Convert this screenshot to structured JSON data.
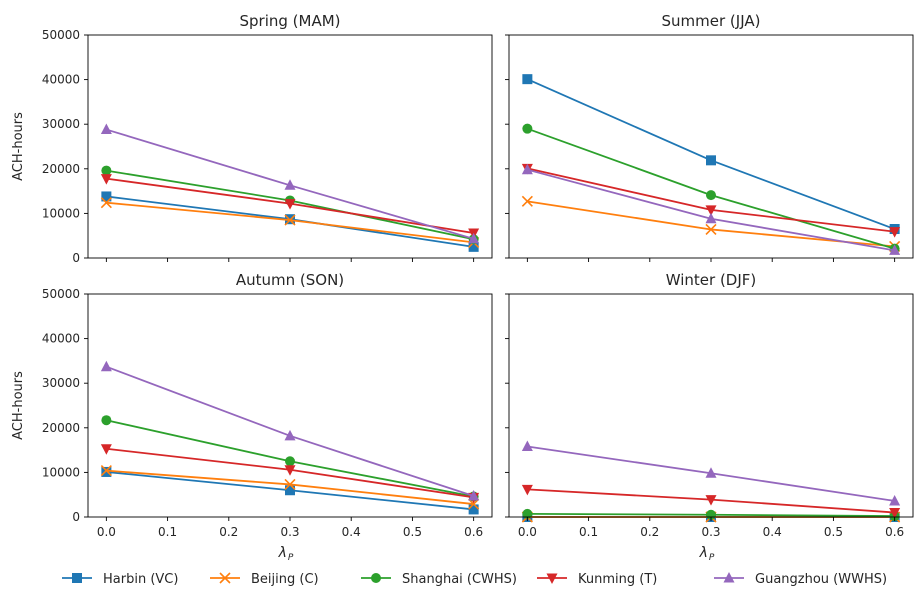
{
  "figure": {
    "ylabel": "ACH-hours",
    "xlabel_main": "λ",
    "xlabel_sub": "P",
    "legend_position": "bottom-center"
  },
  "chart_data": [
    {
      "type": "line",
      "title": "Spring (MAM)",
      "x": [
        0.0,
        0.3,
        0.6
      ],
      "xlim": [
        -0.03,
        0.63
      ],
      "ylim": [
        0,
        50000
      ],
      "xticks": [
        "0.0",
        "0.1",
        "0.2",
        "0.3",
        "0.4",
        "0.5",
        "0.6"
      ],
      "yticks": [
        "0",
        "10000",
        "20000",
        "30000",
        "40000",
        "50000"
      ],
      "grid": false,
      "series": [
        {
          "name": "Harbin (VC)",
          "values": [
            13800,
            8700,
            2500
          ]
        },
        {
          "name": "Beijing (C)",
          "values": [
            12400,
            8500,
            3500
          ]
        },
        {
          "name": "Shanghai (CWHS)",
          "values": [
            19600,
            12900,
            4200
          ]
        },
        {
          "name": "Kunming (T)",
          "values": [
            17800,
            12200,
            5600
          ]
        },
        {
          "name": "Guangzhou (WWHS)",
          "values": [
            28800,
            16300,
            4300
          ]
        }
      ]
    },
    {
      "type": "line",
      "title": "Summer (JJA)",
      "x": [
        0.0,
        0.3,
        0.6
      ],
      "xlim": [
        -0.03,
        0.63
      ],
      "ylim": [
        0,
        50000
      ],
      "xticks": [
        "0.0",
        "0.1",
        "0.2",
        "0.3",
        "0.4",
        "0.5",
        "0.6"
      ],
      "yticks": [
        "0",
        "10000",
        "20000",
        "30000",
        "40000",
        "50000"
      ],
      "grid": false,
      "series": [
        {
          "name": "Harbin (VC)",
          "values": [
            40100,
            21900,
            6500
          ]
        },
        {
          "name": "Beijing (C)",
          "values": [
            12700,
            6400,
            2600
          ]
        },
        {
          "name": "Shanghai (CWHS)",
          "values": [
            29000,
            14100,
            2100
          ]
        },
        {
          "name": "Kunming (T)",
          "values": [
            20100,
            10800,
            5900
          ]
        },
        {
          "name": "Guangzhou (WWHS)",
          "values": [
            19800,
            8800,
            1700
          ]
        }
      ]
    },
    {
      "type": "line",
      "title": "Autumn (SON)",
      "x": [
        0.0,
        0.3,
        0.6
      ],
      "xlim": [
        -0.03,
        0.63
      ],
      "ylim": [
        0,
        50000
      ],
      "xticks": [
        "0.0",
        "0.1",
        "0.2",
        "0.3",
        "0.4",
        "0.5",
        "0.6"
      ],
      "yticks": [
        "0",
        "10000",
        "20000",
        "30000",
        "40000",
        "50000"
      ],
      "grid": false,
      "series": [
        {
          "name": "Harbin (VC)",
          "values": [
            10100,
            6000,
            1700
          ]
        },
        {
          "name": "Beijing (C)",
          "values": [
            10400,
            7300,
            2900
          ]
        },
        {
          "name": "Shanghai (CWHS)",
          "values": [
            21700,
            12500,
            4600
          ]
        },
        {
          "name": "Kunming (T)",
          "values": [
            15300,
            10600,
            4400
          ]
        },
        {
          "name": "Guangzhou (WWHS)",
          "values": [
            33700,
            18200,
            4700
          ]
        }
      ]
    },
    {
      "type": "line",
      "title": "Winter (DJF)",
      "x": [
        0.0,
        0.3,
        0.6
      ],
      "xlim": [
        -0.03,
        0.63
      ],
      "ylim": [
        0,
        50000
      ],
      "xticks": [
        "0.0",
        "0.1",
        "0.2",
        "0.3",
        "0.4",
        "0.5",
        "0.6"
      ],
      "yticks": [
        "0",
        "10000",
        "20000",
        "30000",
        "40000",
        "50000"
      ],
      "grid": false,
      "series": [
        {
          "name": "Harbin (VC)",
          "values": [
            0,
            0,
            0
          ]
        },
        {
          "name": "Beijing (C)",
          "values": [
            0,
            0,
            0
          ]
        },
        {
          "name": "Shanghai (CWHS)",
          "values": [
            700,
            500,
            200
          ]
        },
        {
          "name": "Kunming (T)",
          "values": [
            6200,
            3900,
            1000
          ]
        },
        {
          "name": "Guangzhou (WWHS)",
          "values": [
            15800,
            9800,
            3600
          ]
        }
      ]
    }
  ],
  "legend": [
    {
      "label": "Harbin (VC)",
      "color": "#1f77b4",
      "marker": "square"
    },
    {
      "label": "Beijing (C)",
      "color": "#ff7f0e",
      "marker": "x"
    },
    {
      "label": "Shanghai (CWHS)",
      "color": "#2ca02c",
      "marker": "circle"
    },
    {
      "label": "Kunming (T)",
      "color": "#d62728",
      "marker": "triangle-down"
    },
    {
      "label": "Guangzhou (WWHS)",
      "color": "#9467bd",
      "marker": "triangle-up"
    }
  ]
}
